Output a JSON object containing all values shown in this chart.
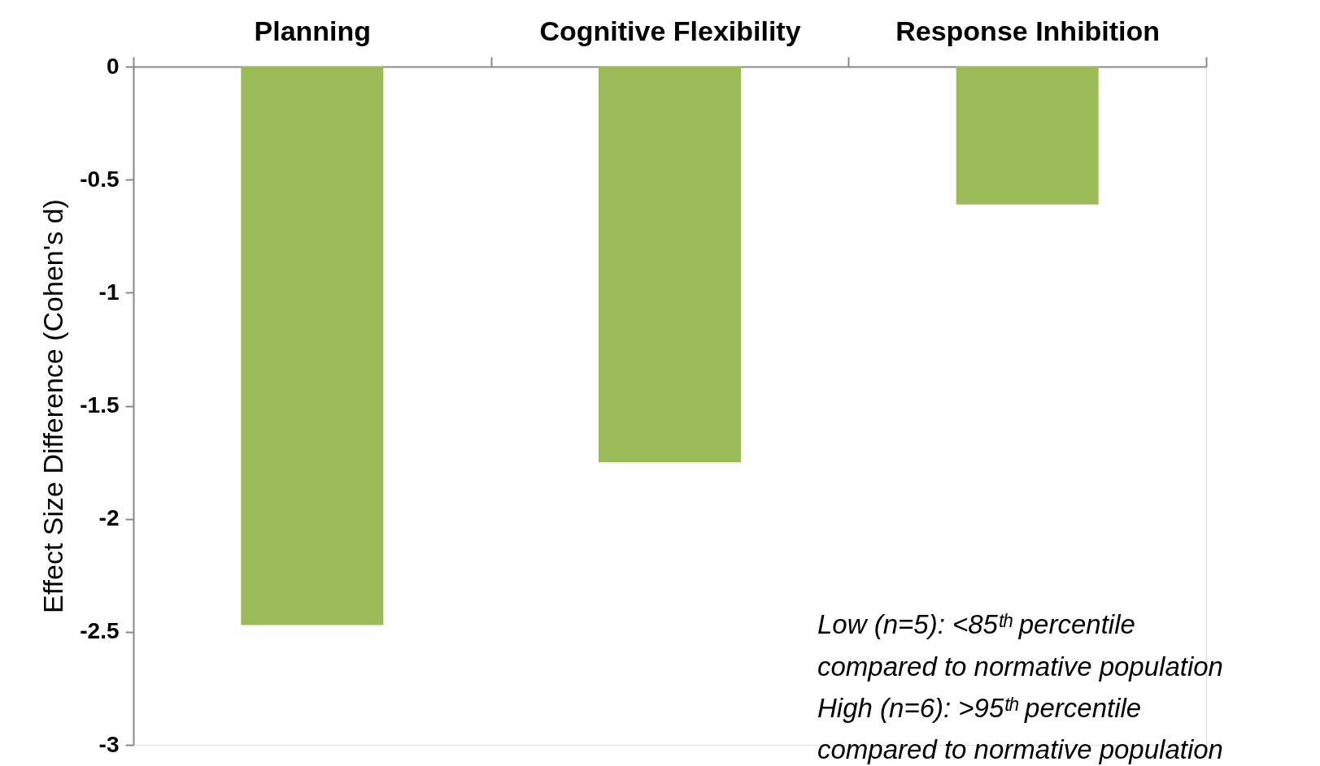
{
  "chart_data": {
    "type": "bar",
    "categories": [
      "Planning",
      "Cognitive Flexibility",
      "Response Inhibition"
    ],
    "values": [
      -2.47,
      -1.75,
      -0.61
    ],
    "color": "#9bbb59",
    "ylabel": "Effect Size Difference (Cohen's d)",
    "ylim": [
      -3,
      0
    ],
    "yticks": [
      -3,
      -2.5,
      -2,
      -1.5,
      -1,
      -0.5,
      0
    ],
    "grid": false,
    "annotations": [
      "Low (n=5): <85ᵗʰ percentile",
      "compared to normative population",
      "High (n=6): >95ᵗʰ percentile",
      "compared to normative population"
    ]
  }
}
